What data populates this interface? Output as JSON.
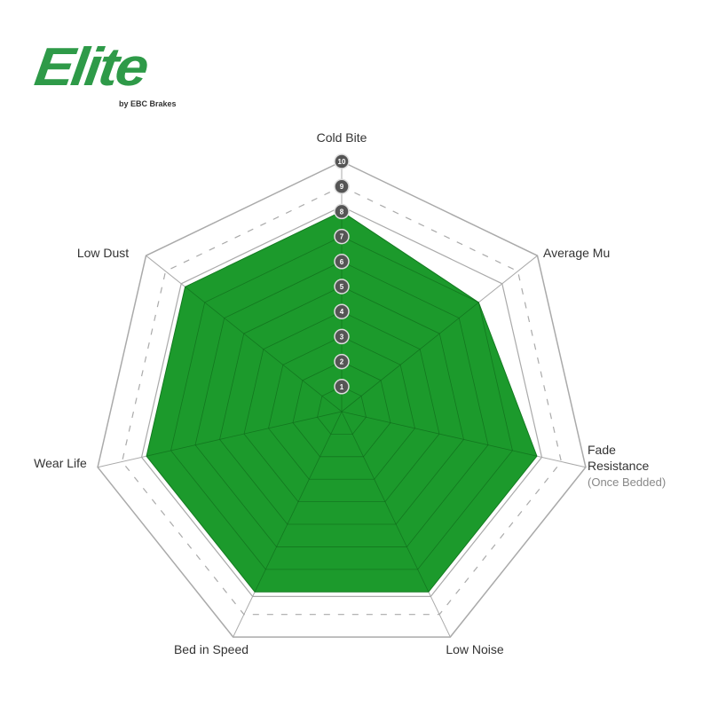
{
  "logo": {
    "text": "Elite",
    "byline": "by EBC Brakes",
    "color": "#2e9a48"
  },
  "chart_data": {
    "type": "radar",
    "axes": [
      "Cold Bite",
      "Average Mu",
      "Fade Resistance",
      "Low Noise",
      "Bed in Speed",
      "Wear Life",
      "Low Dust"
    ],
    "axis_sublabels": {
      "Fade Resistance": "(Once Bedded)"
    },
    "values": [
      8,
      7,
      8,
      8,
      8,
      8,
      8
    ],
    "range": [
      0,
      10
    ],
    "scale_labels": [
      "1",
      "2",
      "3",
      "4",
      "5",
      "6",
      "7",
      "8",
      "9",
      "10"
    ],
    "fill_color": "#1c9a2c",
    "grid_color": "#aaaaaa"
  }
}
